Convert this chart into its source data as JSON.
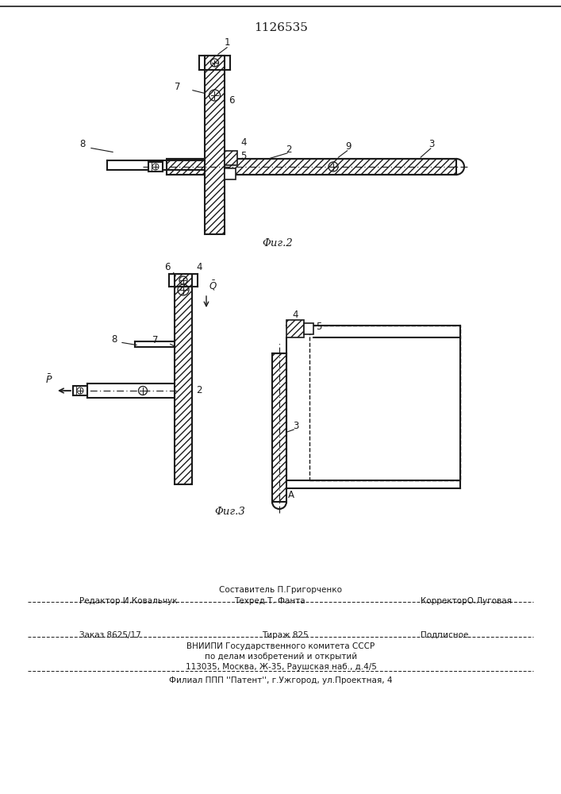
{
  "title": "1126535",
  "fig2_label": "Φиг.2",
  "fig3_label": "Φиг.3",
  "bg_color": "#ffffff",
  "line_color": "#1a1a1a"
}
